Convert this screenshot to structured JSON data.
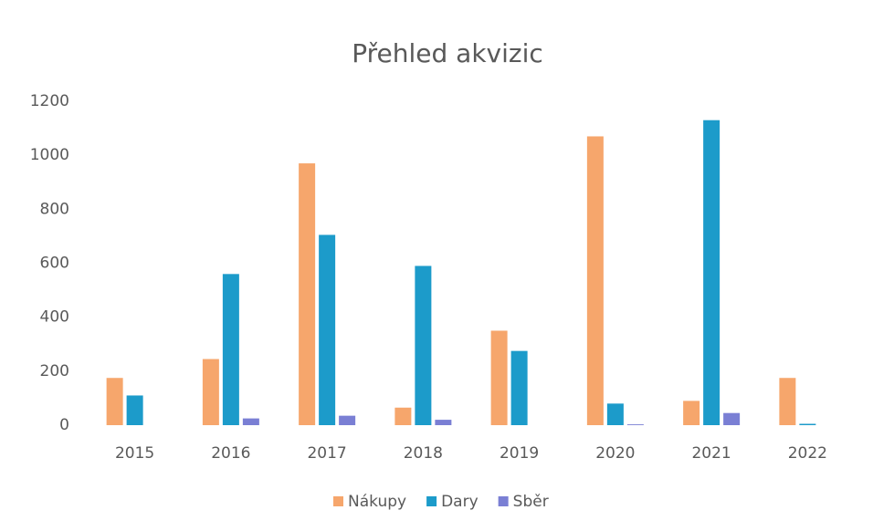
{
  "chart_data": {
    "type": "bar",
    "title": "Přehled akvizic",
    "categories": [
      "2015",
      "2016",
      "2017",
      "2018",
      "2019",
      "2020",
      "2021",
      "2022"
    ],
    "series": [
      {
        "name": "Nákupy",
        "color": "#f6a66c",
        "values": [
          175,
          245,
          970,
          65,
          350,
          1070,
          90,
          175
        ]
      },
      {
        "name": "Dary",
        "color": "#1c9bca",
        "values": [
          110,
          560,
          705,
          590,
          275,
          80,
          1130,
          5
        ]
      },
      {
        "name": "Sběr",
        "color": "#7a7fd4",
        "values": [
          0,
          25,
          35,
          20,
          0,
          3,
          45,
          0
        ]
      }
    ],
    "ylim": [
      0,
      1200
    ],
    "yticks": [
      0,
      200,
      400,
      600,
      800,
      1000,
      1200
    ],
    "grid": false,
    "legend": "bottom"
  }
}
